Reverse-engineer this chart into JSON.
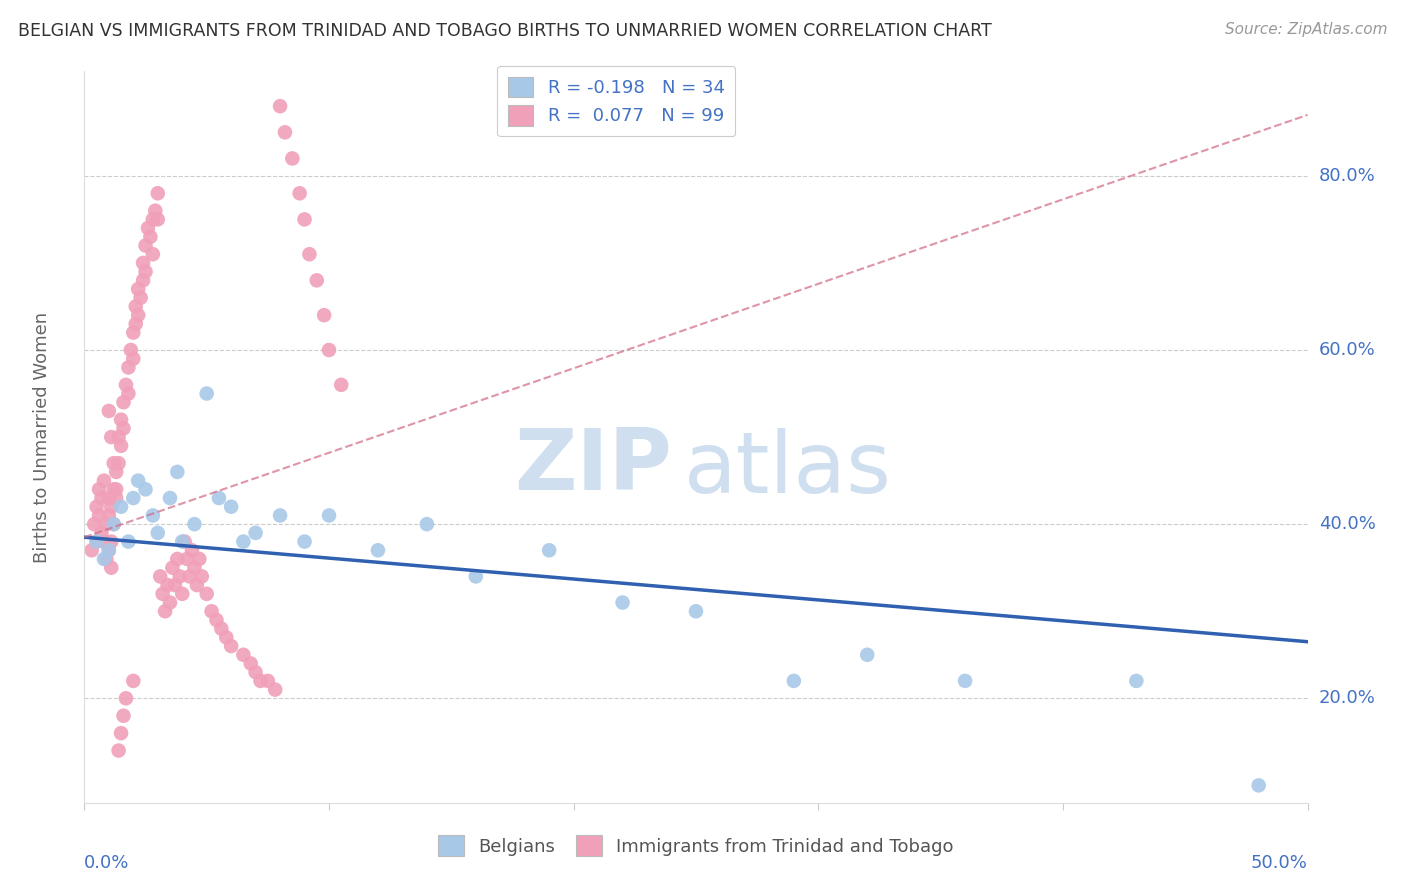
{
  "title": "BELGIAN VS IMMIGRANTS FROM TRINIDAD AND TOBAGO BIRTHS TO UNMARRIED WOMEN CORRELATION CHART",
  "source": "Source: ZipAtlas.com",
  "ylabel_label": "Births to Unmarried Women",
  "ytick_labels": [
    "20.0%",
    "40.0%",
    "60.0%",
    "80.0%"
  ],
  "ytick_values": [
    0.2,
    0.4,
    0.6,
    0.8
  ],
  "xlim": [
    0.0,
    0.5
  ],
  "ylim": [
    0.08,
    0.92
  ],
  "legend_blue_r": "R = -0.198",
  "legend_blue_n": "N = 34",
  "legend_pink_r": "R =  0.077",
  "legend_pink_n": "N = 99",
  "blue_color": "#a8c8e8",
  "pink_color": "#f0a0b8",
  "blue_line_color": "#3060b0",
  "pink_line_color": "#d06880",
  "watermark_zip": "ZIP",
  "watermark_atlas": "atlas",
  "watermark_color": "#d0dff0",
  "blue_line_x0": 0.0,
  "blue_line_x1": 0.5,
  "blue_line_y0": 0.385,
  "blue_line_y1": 0.265,
  "pink_line_x0": 0.0,
  "pink_line_x1": 0.5,
  "pink_line_y0": 0.385,
  "pink_line_y1": 0.87,
  "belgians_x": [
    0.005,
    0.008,
    0.01,
    0.012,
    0.015,
    0.018,
    0.02,
    0.022,
    0.025,
    0.028,
    0.03,
    0.035,
    0.038,
    0.04,
    0.045,
    0.05,
    0.055,
    0.06,
    0.065,
    0.07,
    0.08,
    0.09,
    0.1,
    0.12,
    0.14,
    0.16,
    0.19,
    0.22,
    0.25,
    0.29,
    0.32,
    0.36,
    0.43,
    0.48
  ],
  "belgians_y": [
    0.38,
    0.36,
    0.37,
    0.4,
    0.42,
    0.38,
    0.43,
    0.45,
    0.44,
    0.41,
    0.39,
    0.43,
    0.46,
    0.38,
    0.4,
    0.55,
    0.43,
    0.42,
    0.38,
    0.39,
    0.41,
    0.38,
    0.41,
    0.37,
    0.4,
    0.34,
    0.37,
    0.31,
    0.3,
    0.22,
    0.25,
    0.22,
    0.22,
    0.1
  ],
  "trinidadian_x": [
    0.003,
    0.004,
    0.005,
    0.005,
    0.006,
    0.006,
    0.007,
    0.007,
    0.008,
    0.008,
    0.009,
    0.009,
    0.01,
    0.01,
    0.01,
    0.011,
    0.011,
    0.011,
    0.012,
    0.012,
    0.013,
    0.013,
    0.014,
    0.014,
    0.015,
    0.015,
    0.016,
    0.016,
    0.017,
    0.018,
    0.018,
    0.019,
    0.02,
    0.02,
    0.021,
    0.021,
    0.022,
    0.022,
    0.023,
    0.024,
    0.024,
    0.025,
    0.025,
    0.026,
    0.027,
    0.028,
    0.028,
    0.029,
    0.03,
    0.03,
    0.031,
    0.032,
    0.033,
    0.034,
    0.035,
    0.036,
    0.037,
    0.038,
    0.039,
    0.04,
    0.041,
    0.042,
    0.043,
    0.044,
    0.045,
    0.046,
    0.047,
    0.048,
    0.05,
    0.052,
    0.054,
    0.056,
    0.058,
    0.06,
    0.065,
    0.068,
    0.07,
    0.072,
    0.075,
    0.078,
    0.08,
    0.082,
    0.085,
    0.088,
    0.09,
    0.092,
    0.095,
    0.098,
    0.1,
    0.105,
    0.01,
    0.011,
    0.012,
    0.013,
    0.014,
    0.015,
    0.016,
    0.017,
    0.02
  ],
  "trinidadian_y": [
    0.37,
    0.4,
    0.42,
    0.38,
    0.44,
    0.41,
    0.43,
    0.39,
    0.45,
    0.38,
    0.4,
    0.36,
    0.41,
    0.43,
    0.37,
    0.42,
    0.38,
    0.35,
    0.44,
    0.4,
    0.46,
    0.43,
    0.5,
    0.47,
    0.52,
    0.49,
    0.54,
    0.51,
    0.56,
    0.58,
    0.55,
    0.6,
    0.62,
    0.59,
    0.63,
    0.65,
    0.64,
    0.67,
    0.66,
    0.68,
    0.7,
    0.72,
    0.69,
    0.74,
    0.73,
    0.75,
    0.71,
    0.76,
    0.78,
    0.75,
    0.34,
    0.32,
    0.3,
    0.33,
    0.31,
    0.35,
    0.33,
    0.36,
    0.34,
    0.32,
    0.38,
    0.36,
    0.34,
    0.37,
    0.35,
    0.33,
    0.36,
    0.34,
    0.32,
    0.3,
    0.29,
    0.28,
    0.27,
    0.26,
    0.25,
    0.24,
    0.23,
    0.22,
    0.22,
    0.21,
    0.88,
    0.85,
    0.82,
    0.78,
    0.75,
    0.71,
    0.68,
    0.64,
    0.6,
    0.56,
    0.53,
    0.5,
    0.47,
    0.44,
    0.14,
    0.16,
    0.18,
    0.2,
    0.22
  ]
}
